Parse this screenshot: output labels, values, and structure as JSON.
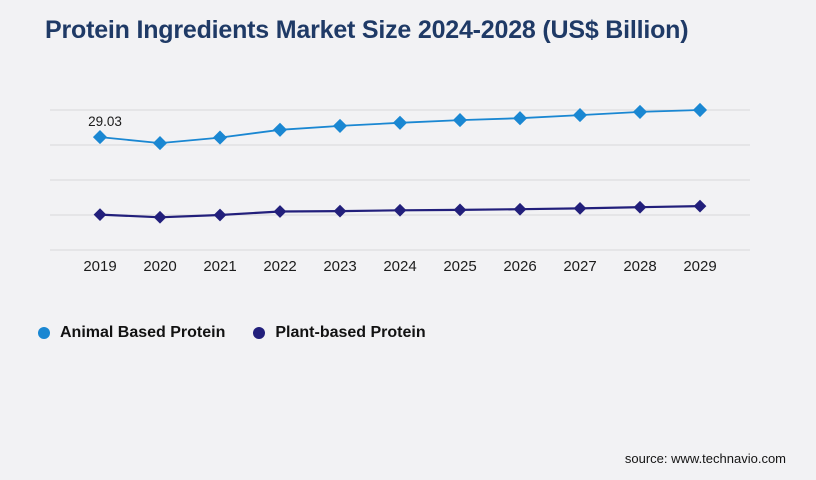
{
  "page": {
    "background": "#f2f2f4"
  },
  "header": {
    "title": "Protein Ingredients Market Size 2024-2028 (US$ Billion)",
    "title_color": "#1f3a66"
  },
  "legend": {
    "items": [
      {
        "label": "Animal Based Protein",
        "color": "#1a87d2"
      },
      {
        "label": "Plant-based Protein",
        "color": "#221f7b"
      }
    ]
  },
  "source": {
    "label": "source: www.technavio.com"
  },
  "chart_data": {
    "type": "line",
    "title": "Protein Ingredients Market Size 2024-2028 (US$ Billion)",
    "categories": [
      "2019",
      "2020",
      "2021",
      "2022",
      "2023",
      "2024",
      "2025",
      "2026",
      "2027",
      "2028",
      "2029"
    ],
    "series": [
      {
        "name": "Animal Based Protein",
        "color": "#1a87d2",
        "marker": "diamond",
        "values": [
          29.03,
          27.5,
          28.9,
          30.9,
          31.9,
          32.7,
          33.4,
          33.9,
          34.7,
          35.5,
          36.0
        ]
      },
      {
        "name": "Plant-based Protein",
        "color": "#221f7b",
        "marker": "diamond",
        "values": [
          9.1,
          8.4,
          9.0,
          9.9,
          10.0,
          10.2,
          10.3,
          10.5,
          10.7,
          11.0,
          11.3
        ]
      }
    ],
    "xlabel": "",
    "ylabel": "",
    "ylim": [
      0,
      36
    ],
    "gridline_values": [
      0,
      9,
      18,
      27,
      36
    ],
    "grid": true,
    "legend_position": "bottom-left",
    "annotations": [
      {
        "series": "Animal Based Protein",
        "category": "2019",
        "text": "29.03"
      }
    ],
    "axis_text_color": "#1c1c1c",
    "gridline_color": "#d8d8da"
  }
}
